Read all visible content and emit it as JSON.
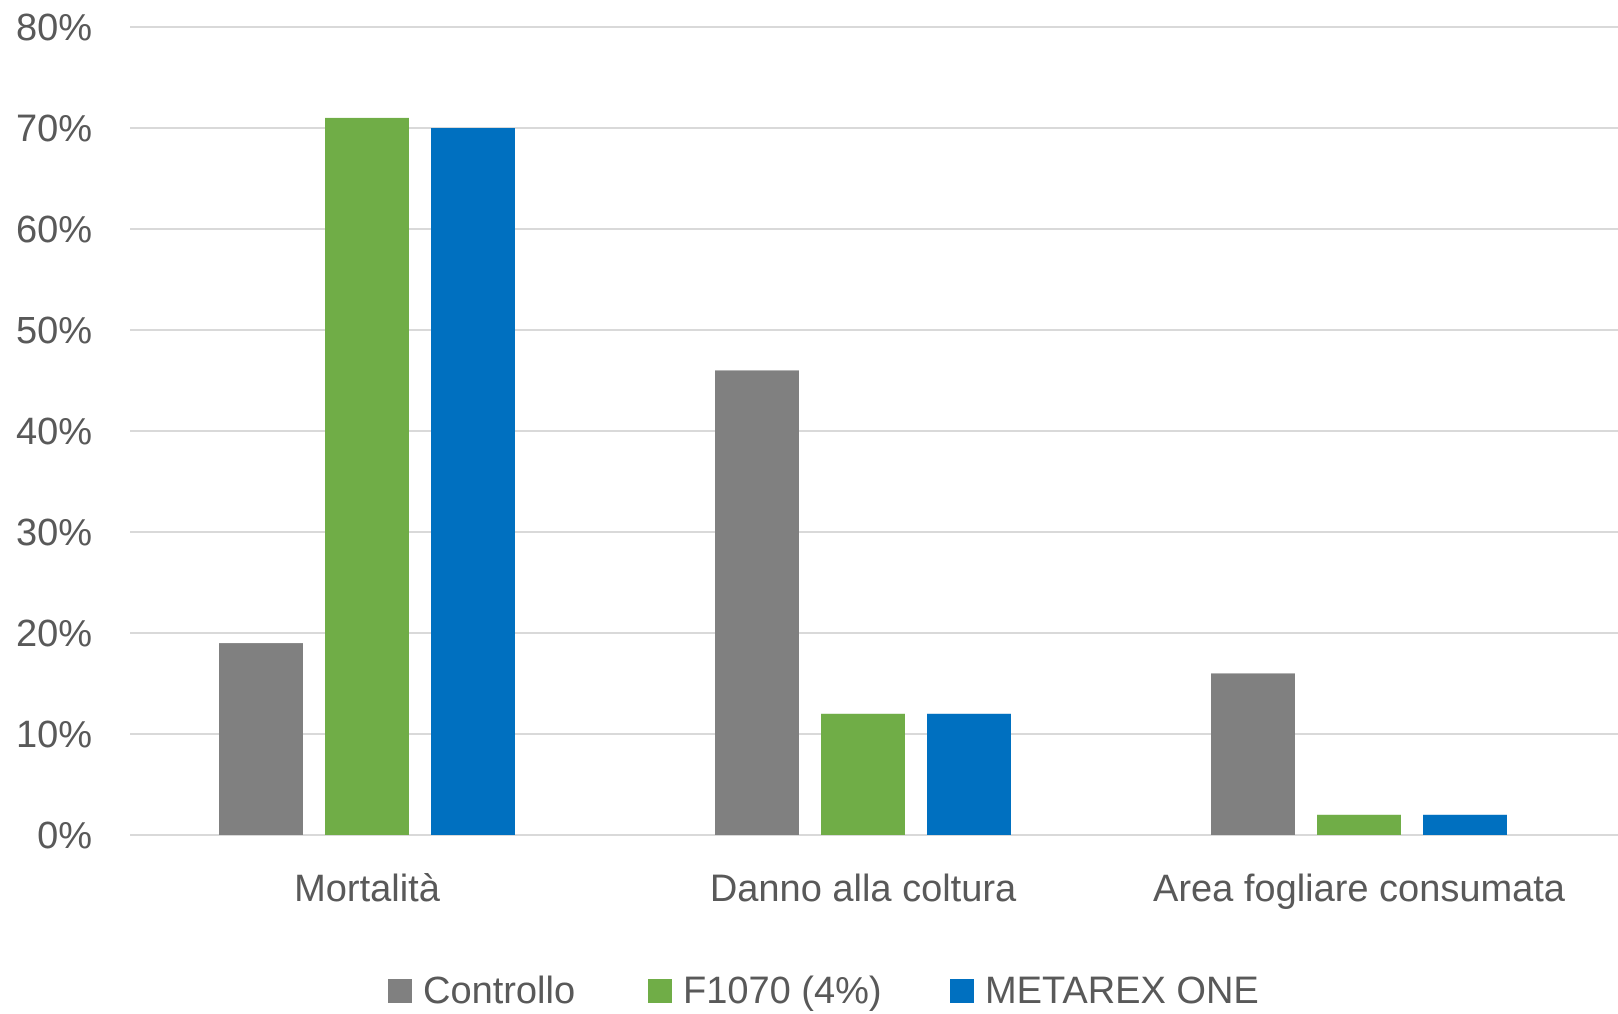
{
  "chart_data": {
    "type": "bar",
    "title": "",
    "xlabel": "",
    "ylabel": "",
    "categories": [
      "Mortalità",
      "Danno alla coltura",
      "Area fogliare consumata"
    ],
    "series": [
      {
        "name": "Controllo",
        "color": "#808080",
        "values": [
          0.19,
          0.46,
          0.16
        ]
      },
      {
        "name": "F1070 (4%)",
        "color": "#70ad47",
        "values": [
          0.71,
          0.12,
          0.02
        ]
      },
      {
        "name": "METAREX ONE",
        "color": "#0070c0",
        "values": [
          0.7,
          0.12,
          0.02
        ]
      }
    ],
    "ylim": [
      0,
      0.8
    ],
    "yticks": [
      0,
      0.1,
      0.2,
      0.3,
      0.4,
      0.5,
      0.6,
      0.7,
      0.8
    ],
    "ytick_labels": [
      "0%",
      "10%",
      "20%",
      "30%",
      "40%",
      "50%",
      "60%",
      "70%",
      "80%"
    ],
    "grid": true,
    "legend_position": "bottom"
  }
}
